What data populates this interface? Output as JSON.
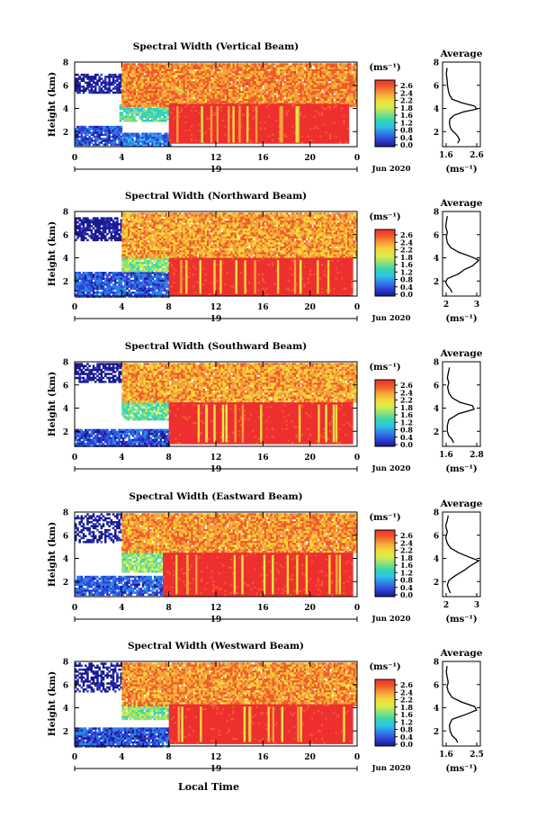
{
  "panels": [
    {
      "title": "Spectral Width (Vertical Beam)",
      "colorbar_ticks": [
        "2.6",
        "2.4",
        "2.2",
        "1.8",
        "1.6",
        "1.2",
        "0.8",
        "0.4",
        "0.0"
      ],
      "profile": {
        "xlim": [
          1.6,
          2.6
        ],
        "xtick_labels": [
          "1.6",
          "2.6"
        ],
        "points": [
          [
            2.0,
            1.0
          ],
          [
            2.05,
            1.3
          ],
          [
            2.0,
            1.6
          ],
          [
            1.95,
            1.8
          ],
          [
            1.85,
            2.1
          ],
          [
            1.8,
            2.4
          ],
          [
            1.78,
            2.8
          ],
          [
            1.8,
            3.1
          ],
          [
            1.9,
            3.4
          ],
          [
            2.15,
            3.7
          ],
          [
            2.5,
            3.95
          ],
          [
            2.45,
            4.2
          ],
          [
            2.1,
            4.5
          ],
          [
            1.85,
            4.8
          ],
          [
            1.78,
            5.2
          ],
          [
            1.75,
            5.6
          ],
          [
            1.73,
            6.0
          ],
          [
            1.72,
            6.5
          ],
          [
            1.7,
            7.0
          ],
          [
            1.72,
            7.5
          ]
        ]
      },
      "tags": [
        "vertical",
        "19"
      ],
      "region": {
        "t0": 8,
        "t1": 23.2,
        "h0": 1.05,
        "h1": 4.4
      },
      "layers": [
        {
          "t0": 0,
          "t1": 4,
          "h0": 0.8,
          "h1": 2.5,
          "value": 0.4,
          "fill": 0.9,
          "seed": 11
        },
        {
          "t0": 0,
          "t1": 4,
          "h0": 5.3,
          "h1": 7.0,
          "value": 0.1,
          "fill": 0.75,
          "seed": 12
        },
        {
          "t0": 4,
          "t1": 8.2,
          "h0": 0.8,
          "h1": 1.9,
          "value": 0.55,
          "fill": 0.95,
          "seed": 13
        },
        {
          "t0": 3.8,
          "t1": 8.8,
          "h0": 3.0,
          "h1": 4.4,
          "value": 1.1,
          "fill": 0.9,
          "seed": 14
        },
        {
          "t0": 4,
          "t1": 10,
          "h0": 4.4,
          "h1": 6.8,
          "value": 1.6,
          "fill": 0.96,
          "seed": 15
        },
        {
          "t0": 4,
          "t1": 24,
          "h0": 4.3,
          "h1": 7.9,
          "value": 2.1,
          "fill": 0.97,
          "seed": 16
        },
        {
          "t0": 8,
          "t1": 23.2,
          "h0": 1.05,
          "h1": 4.4,
          "value": 2.6,
          "fill": 1.0,
          "seed": 17
        }
      ]
    },
    {
      "title": "Spectral Width (Northward Beam)",
      "colorbar_ticks": [
        "2.6",
        "2.4",
        "2.2",
        "1.8",
        "1.6",
        "1.2",
        "0.8",
        "0.4",
        "0.0"
      ],
      "profile": {
        "xlim": [
          1.8,
          3.0
        ],
        "xtick_labels": [
          "2",
          "3"
        ],
        "points": [
          [
            2.1,
            1.0
          ],
          [
            2.05,
            1.3
          ],
          [
            1.95,
            1.6
          ],
          [
            1.9,
            1.9
          ],
          [
            1.95,
            2.2
          ],
          [
            2.3,
            2.6
          ],
          [
            2.5,
            3.0
          ],
          [
            2.75,
            3.3
          ],
          [
            2.95,
            3.8
          ],
          [
            2.7,
            4.1
          ],
          [
            2.3,
            4.5
          ],
          [
            2.05,
            4.9
          ],
          [
            1.95,
            5.3
          ],
          [
            1.92,
            5.8
          ],
          [
            1.95,
            6.2
          ],
          [
            1.9,
            6.7
          ],
          [
            1.92,
            7.1
          ],
          [
            1.95,
            7.6
          ]
        ]
      },
      "tags": [
        "northward",
        "19"
      ],
      "region": {
        "t0": 8,
        "t1": 23.5,
        "h0": 0.9,
        "h1": 4.0
      },
      "layers": [
        {
          "t0": 0,
          "t1": 8,
          "h0": 0.7,
          "h1": 2.8,
          "value": 0.45,
          "fill": 0.92,
          "seed": 21
        },
        {
          "t0": 0,
          "t1": 4,
          "h0": 5.5,
          "h1": 7.5,
          "value": 0.05,
          "fill": 0.8,
          "seed": 22
        },
        {
          "t0": 4,
          "t1": 9,
          "h0": 2.8,
          "h1": 4.5,
          "value": 1.3,
          "fill": 0.9,
          "seed": 23
        },
        {
          "t0": 4,
          "t1": 24,
          "h0": 4.0,
          "h1": 7.9,
          "value": 2.0,
          "fill": 0.97,
          "seed": 24
        },
        {
          "t0": 8,
          "t1": 23.5,
          "h0": 0.9,
          "h1": 4.0,
          "value": 2.6,
          "fill": 1.0,
          "seed": 25
        }
      ]
    },
    {
      "title": "Spectral Width (Southward Beam)",
      "colorbar_ticks": [
        "2.6",
        "2.4",
        "2.2",
        "1.8",
        "1.6",
        "1.2",
        "0.8",
        "0.4",
        "0.0"
      ],
      "profile": {
        "xlim": [
          1.6,
          2.8
        ],
        "xtick_labels": [
          "1.6",
          "2.8"
        ],
        "points": [
          [
            1.95,
            1.0
          ],
          [
            1.9,
            1.3
          ],
          [
            1.8,
            1.6
          ],
          [
            1.75,
            2.0
          ],
          [
            1.75,
            2.5
          ],
          [
            1.8,
            3.0
          ],
          [
            2.1,
            3.5
          ],
          [
            2.6,
            3.9
          ],
          [
            2.55,
            4.2
          ],
          [
            2.15,
            4.5
          ],
          [
            1.9,
            4.9
          ],
          [
            1.8,
            5.3
          ],
          [
            1.76,
            5.8
          ],
          [
            1.8,
            6.2
          ],
          [
            1.75,
            6.6
          ],
          [
            1.78,
            7.0
          ],
          [
            1.82,
            7.5
          ]
        ]
      },
      "tags": [
        "southward",
        "19"
      ],
      "region": {
        "t0": 8,
        "t1": 23.5,
        "h0": 1.05,
        "h1": 4.5
      },
      "layers": [
        {
          "t0": 0,
          "t1": 8,
          "h0": 0.7,
          "h1": 2.2,
          "value": 0.4,
          "fill": 0.92,
          "seed": 31
        },
        {
          "t0": 0,
          "t1": 4,
          "h0": 6.2,
          "h1": 7.9,
          "value": 0.05,
          "fill": 0.7,
          "seed": 32
        },
        {
          "t0": 4,
          "t1": 9,
          "h0": 3.0,
          "h1": 5.0,
          "value": 1.2,
          "fill": 0.9,
          "seed": 33
        },
        {
          "t0": 4,
          "t1": 24,
          "h0": 4.5,
          "h1": 7.9,
          "value": 2.0,
          "fill": 0.97,
          "seed": 34
        },
        {
          "t0": 8,
          "t1": 23.5,
          "h0": 1.05,
          "h1": 4.5,
          "value": 2.6,
          "fill": 1.0,
          "seed": 35
        }
      ]
    },
    {
      "title": "Spectral Width (Eastward Beam)",
      "colorbar_ticks": [
        "2.6",
        "2.4",
        "2.2",
        "1.8",
        "1.6",
        "1.2",
        "0.8",
        "0.4",
        "0.0"
      ],
      "profile": {
        "xlim": [
          1.8,
          3.0
        ],
        "xtick_labels": [
          "2",
          "3"
        ],
        "points": [
          [
            2.05,
            1.0
          ],
          [
            2.0,
            1.3
          ],
          [
            1.95,
            1.7
          ],
          [
            2.0,
            2.1
          ],
          [
            2.2,
            2.5
          ],
          [
            2.5,
            3.0
          ],
          [
            2.65,
            3.3
          ],
          [
            2.95,
            3.8
          ],
          [
            2.65,
            4.1
          ],
          [
            2.3,
            4.5
          ],
          [
            2.05,
            4.9
          ],
          [
            1.95,
            5.3
          ],
          [
            1.9,
            5.8
          ],
          [
            1.95,
            6.3
          ],
          [
            1.9,
            6.8
          ],
          [
            1.95,
            7.3
          ],
          [
            1.98,
            7.7
          ]
        ]
      },
      "tags": [
        "eastward",
        "19"
      ],
      "region": {
        "t0": 7.5,
        "t1": 23.5,
        "h0": 0.9,
        "h1": 4.5
      },
      "layers": [
        {
          "t0": 0,
          "t1": 8,
          "h0": 0.8,
          "h1": 2.5,
          "value": 0.45,
          "fill": 0.85,
          "seed": 41
        },
        {
          "t0": 0,
          "t1": 4,
          "h0": 5.5,
          "h1": 7.9,
          "value": 0.05,
          "fill": 0.5,
          "seed": 42
        },
        {
          "t0": 4,
          "t1": 9,
          "h0": 2.8,
          "h1": 5.0,
          "value": 1.3,
          "fill": 0.9,
          "seed": 43
        },
        {
          "t0": 4,
          "t1": 24,
          "h0": 4.5,
          "h1": 7.9,
          "value": 2.05,
          "fill": 0.97,
          "seed": 44
        },
        {
          "t0": 7.5,
          "t1": 23.5,
          "h0": 0.9,
          "h1": 4.5,
          "value": 2.6,
          "fill": 1.0,
          "seed": 45
        }
      ]
    },
    {
      "title": "Spectral Width (Westward Beam)",
      "colorbar_ticks": [
        "2.6",
        "2.4",
        "2.2",
        "1.8",
        "1.6",
        "1.2",
        "0.8",
        "0.4",
        "0.0"
      ],
      "profile": {
        "xlim": [
          1.6,
          2.6
        ],
        "xtick_labels": [
          "1.6",
          "2.5"
        ],
        "points": [
          [
            2.0,
            1.0
          ],
          [
            1.95,
            1.3
          ],
          [
            1.85,
            1.6
          ],
          [
            1.8,
            2.0
          ],
          [
            1.78,
            2.5
          ],
          [
            1.85,
            3.0
          ],
          [
            2.2,
            3.4
          ],
          [
            2.5,
            3.8
          ],
          [
            2.45,
            4.1
          ],
          [
            2.1,
            4.5
          ],
          [
            1.85,
            4.9
          ],
          [
            1.75,
            5.4
          ],
          [
            1.72,
            5.8
          ],
          [
            1.75,
            6.2
          ],
          [
            1.72,
            6.7
          ],
          [
            1.7,
            7.1
          ],
          [
            1.72,
            7.6
          ]
        ]
      },
      "tags": [
        "westward",
        "19"
      ],
      "region": {
        "t0": 8,
        "t1": 23.5,
        "h0": 1.05,
        "h1": 4.3
      },
      "layers": [
        {
          "t0": 0,
          "t1": 8,
          "h0": 0.7,
          "h1": 2.3,
          "value": 0.4,
          "fill": 0.92,
          "seed": 51
        },
        {
          "t0": 0,
          "t1": 4,
          "h0": 5.5,
          "h1": 7.9,
          "value": 0.05,
          "fill": 0.6,
          "seed": 52
        },
        {
          "t0": 4,
          "t1": 9,
          "h0": 3.0,
          "h1": 4.5,
          "value": 1.3,
          "fill": 0.9,
          "seed": 53
        },
        {
          "t0": 4,
          "t1": 24,
          "h0": 4.3,
          "h1": 7.9,
          "value": 2.05,
          "fill": 0.97,
          "seed": 54
        },
        {
          "t0": 8,
          "t1": 23.5,
          "h0": 1.05,
          "h1": 4.3,
          "value": 2.6,
          "fill": 1.0,
          "seed": 55
        }
      ]
    }
  ],
  "chart_data": {
    "type": "heatmap",
    "ylabel": "Height (km)",
    "yticks": [
      "2",
      "4",
      "6",
      "8"
    ],
    "ylim": [
      0.7,
      8
    ],
    "xlim": [
      0,
      24
    ],
    "xticks": [
      "0",
      "4",
      "8",
      "12",
      "16",
      "20",
      "0"
    ],
    "date_marker": "19",
    "date_label": "Jun 2020",
    "xlabel_bottom": "Local Time",
    "colorbar_unit": "(ms⁻¹)",
    "profile_title": "Average",
    "profile_unit": "(ms⁻¹)",
    "profile_yticks": [
      "2",
      "4",
      "6",
      "8"
    ],
    "colormap": [
      "#1a1a8c",
      "#2f3fd6",
      "#2f7fe6",
      "#2fc2e8",
      "#35d6b0",
      "#8ee07a",
      "#d8ee4a",
      "#f4d83a",
      "#f4a13a",
      "#f05a2a",
      "#ee2f2f"
    ],
    "vmin": 0.0,
    "vmax": 2.6
  }
}
